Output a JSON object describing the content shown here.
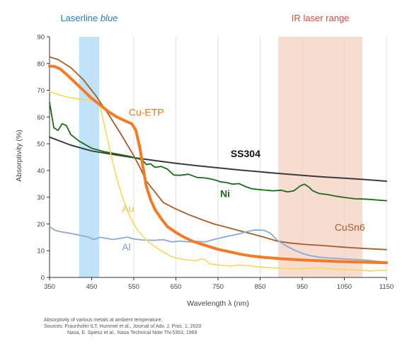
{
  "chart_data": {
    "type": "line",
    "title": "",
    "xlabel": "Wavelength λ (nm)",
    "ylabel": "Absorptivity (%)",
    "xlim": [
      350,
      1150
    ],
    "ylim": [
      0,
      90
    ],
    "xticks": [
      350,
      450,
      550,
      650,
      750,
      850,
      950,
      1050,
      1150
    ],
    "yticks": [
      0,
      10,
      20,
      30,
      40,
      50,
      60,
      70,
      80,
      90
    ],
    "grid": "vertical",
    "bands": [
      {
        "label_plain": "Laserline ",
        "label_italic": "blue",
        "x0": 420,
        "x1": 468,
        "color": "#bfe4fa",
        "text_color": "#1f7fc1"
      },
      {
        "label_plain": "IR laser range",
        "label_italic": "",
        "x0": 893,
        "x1": 1093,
        "color": "#f7dcd0",
        "text_color": "#d84b3c"
      }
    ],
    "series": [
      {
        "name": "SS304",
        "color": "#3b3b3b",
        "width": 2,
        "label_x": 780,
        "label_y": 45,
        "label_color": "#111111",
        "label_bold": true,
        "points": [
          [
            350,
            52.5
          ],
          [
            400,
            49.5
          ],
          [
            450,
            47.3
          ],
          [
            500,
            46
          ],
          [
            550,
            44.8
          ],
          [
            600,
            43.7
          ],
          [
            650,
            42.7
          ],
          [
            700,
            41.8
          ],
          [
            750,
            41
          ],
          [
            800,
            40.2
          ],
          [
            850,
            39.5
          ],
          [
            900,
            38.8
          ],
          [
            950,
            38.2
          ],
          [
            1000,
            37.6
          ],
          [
            1050,
            37.1
          ],
          [
            1100,
            36.6
          ],
          [
            1150,
            36
          ]
        ]
      },
      {
        "name": "Ni",
        "color": "#1d6a1a",
        "width": 1.8,
        "label_x": 755,
        "label_y": 30,
        "label_color": "#1d6a1a",
        "label_bold": true,
        "points": [
          [
            350,
            65.5
          ],
          [
            360,
            56
          ],
          [
            370,
            55
          ],
          [
            380,
            57.5
          ],
          [
            390,
            56.8
          ],
          [
            400,
            53.5
          ],
          [
            420,
            51
          ],
          [
            450,
            48.3
          ],
          [
            480,
            47
          ],
          [
            510,
            46.2
          ],
          [
            540,
            45.3
          ],
          [
            570,
            44
          ],
          [
            580,
            42.2
          ],
          [
            590,
            42.5
          ],
          [
            600,
            41.2
          ],
          [
            615,
            41.5
          ],
          [
            630,
            40.5
          ],
          [
            645,
            38.3
          ],
          [
            660,
            38.2
          ],
          [
            680,
            38.6
          ],
          [
            700,
            37.4
          ],
          [
            720,
            37.2
          ],
          [
            740,
            36.6
          ],
          [
            755,
            35.8
          ],
          [
            770,
            35.5
          ],
          [
            785,
            34.9
          ],
          [
            800,
            35.1
          ],
          [
            815,
            34
          ],
          [
            830,
            33.2
          ],
          [
            845,
            32.9
          ],
          [
            860,
            32.7
          ],
          [
            880,
            32.4
          ],
          [
            900,
            32.6
          ],
          [
            915,
            32
          ],
          [
            930,
            32.4
          ],
          [
            945,
            34.2
          ],
          [
            955,
            34.9
          ],
          [
            965,
            33.9
          ],
          [
            975,
            32.4
          ],
          [
            990,
            31.4
          ],
          [
            1010,
            31
          ],
          [
            1030,
            30.4
          ],
          [
            1050,
            29.9
          ],
          [
            1075,
            29.4
          ],
          [
            1100,
            29.3
          ],
          [
            1150,
            28.7
          ]
        ]
      },
      {
        "name": "CuSn6",
        "color": "#a55d2a",
        "width": 1.8,
        "label_x": 1027,
        "label_y": 17.5,
        "label_color": "#a55d2a",
        "label_bold": false,
        "points": [
          [
            350,
            82.5
          ],
          [
            370,
            81.5
          ],
          [
            400,
            78.5
          ],
          [
            430,
            74
          ],
          [
            460,
            68
          ],
          [
            490,
            61
          ],
          [
            520,
            53.5
          ],
          [
            550,
            45.5
          ],
          [
            565,
            41
          ],
          [
            580,
            36
          ],
          [
            600,
            32
          ],
          [
            620,
            28
          ],
          [
            650,
            25.6
          ],
          [
            680,
            23.5
          ],
          [
            710,
            21.7
          ],
          [
            740,
            20
          ],
          [
            770,
            18.8
          ],
          [
            800,
            17.5
          ],
          [
            830,
            16.3
          ],
          [
            860,
            15
          ],
          [
            890,
            13.6
          ],
          [
            920,
            12.9
          ],
          [
            960,
            12.3
          ],
          [
            1000,
            11.9
          ],
          [
            1050,
            11.3
          ],
          [
            1100,
            10.8
          ],
          [
            1150,
            10.4
          ]
        ]
      },
      {
        "name": "Al",
        "color": "#8aabd6",
        "width": 1.8,
        "label_x": 522,
        "label_y": 10,
        "label_color": "#7ca0cf",
        "label_bold": false,
        "points": [
          [
            350,
            19
          ],
          [
            365,
            17.5
          ],
          [
            380,
            17
          ],
          [
            400,
            16.5
          ],
          [
            420,
            15.8
          ],
          [
            440,
            15.2
          ],
          [
            455,
            14.2
          ],
          [
            470,
            15
          ],
          [
            485,
            14.6
          ],
          [
            500,
            14.2
          ],
          [
            520,
            14.7
          ],
          [
            535,
            15.1
          ],
          [
            550,
            14.4
          ],
          [
            570,
            14
          ],
          [
            600,
            13.9
          ],
          [
            620,
            14.1
          ],
          [
            640,
            13.3
          ],
          [
            660,
            13.6
          ],
          [
            680,
            13.3
          ],
          [
            700,
            13.5
          ],
          [
            720,
            13.3
          ],
          [
            740,
            14.2
          ],
          [
            770,
            15.3
          ],
          [
            800,
            16.3
          ],
          [
            820,
            17.2
          ],
          [
            840,
            17.8
          ],
          [
            860,
            17.6
          ],
          [
            875,
            16.5
          ],
          [
            890,
            14
          ],
          [
            910,
            12
          ],
          [
            930,
            10.3
          ],
          [
            950,
            9
          ],
          [
            970,
            8.1
          ],
          [
            990,
            7.6
          ],
          [
            1010,
            7.3
          ],
          [
            1050,
            6.9
          ],
          [
            1100,
            6.5
          ],
          [
            1130,
            6
          ],
          [
            1150,
            5.8
          ]
        ]
      },
      {
        "name": "Au",
        "color": "#f7d957",
        "width": 1.6,
        "label_x": 522,
        "label_y": 24.5,
        "label_color": "#f1c52c",
        "label_bold": false,
        "points": [
          [
            350,
            69.5
          ],
          [
            370,
            68.5
          ],
          [
            390,
            67.5
          ],
          [
            410,
            67
          ],
          [
            430,
            66.5
          ],
          [
            450,
            66.5
          ],
          [
            460,
            65.5
          ],
          [
            470,
            64
          ],
          [
            480,
            57
          ],
          [
            490,
            50
          ],
          [
            500,
            43
          ],
          [
            510,
            37
          ],
          [
            520,
            31.5
          ],
          [
            530,
            27
          ],
          [
            540,
            23
          ],
          [
            550,
            20
          ],
          [
            560,
            17.5
          ],
          [
            580,
            14
          ],
          [
            600,
            11.5
          ],
          [
            620,
            9.5
          ],
          [
            640,
            7.8
          ],
          [
            660,
            6.9
          ],
          [
            680,
            6.5
          ],
          [
            700,
            6.2
          ],
          [
            710,
            7
          ],
          [
            720,
            6.6
          ],
          [
            730,
            5.1
          ],
          [
            750,
            4.6
          ],
          [
            780,
            4.3
          ],
          [
            800,
            4.6
          ],
          [
            820,
            4.4
          ],
          [
            850,
            3.9
          ],
          [
            880,
            3.6
          ],
          [
            900,
            3.5
          ],
          [
            930,
            3.2
          ],
          [
            960,
            3.4
          ],
          [
            990,
            3.6
          ],
          [
            1020,
            3.1
          ],
          [
            1050,
            3
          ],
          [
            1080,
            2.8
          ],
          [
            1110,
            2.4
          ],
          [
            1130,
            2.6
          ],
          [
            1150,
            2.7
          ]
        ]
      },
      {
        "name": "Cu-ETP",
        "color": "#f47b23",
        "width": 4,
        "label_x": 538,
        "label_y": 60.5,
        "label_color": "#ee7722",
        "label_bold": false,
        "points": [
          [
            350,
            79
          ],
          [
            360,
            79
          ],
          [
            375,
            78
          ],
          [
            390,
            76
          ],
          [
            410,
            73
          ],
          [
            430,
            70
          ],
          [
            450,
            67
          ],
          [
            470,
            64.5
          ],
          [
            490,
            62
          ],
          [
            510,
            60
          ],
          [
            530,
            58.5
          ],
          [
            545,
            57.5
          ],
          [
            555,
            55
          ],
          [
            565,
            48
          ],
          [
            572,
            41
          ],
          [
            580,
            34
          ],
          [
            590,
            29
          ],
          [
            600,
            25.5
          ],
          [
            615,
            22
          ],
          [
            630,
            19
          ],
          [
            650,
            16.8
          ],
          [
            670,
            15
          ],
          [
            690,
            13.5
          ],
          [
            720,
            12
          ],
          [
            750,
            10.5
          ],
          [
            780,
            9.5
          ],
          [
            800,
            8.8
          ],
          [
            830,
            8
          ],
          [
            860,
            7.5
          ],
          [
            900,
            7
          ],
          [
            950,
            6.5
          ],
          [
            1000,
            6.2
          ],
          [
            1050,
            5.9
          ],
          [
            1100,
            5.7
          ],
          [
            1150,
            5.5
          ]
        ]
      }
    ]
  },
  "caption": {
    "line1": "Absorptivity of various metals at ambient temperature.",
    "line2": "Sources: Fraunhofer ILT, Hummel et al., Journal of Adv. J. Proc. 1, 2020",
    "line3": "Nasa, E. Spiesz et al., Nasa Technical Note TN-5353, 1969"
  }
}
